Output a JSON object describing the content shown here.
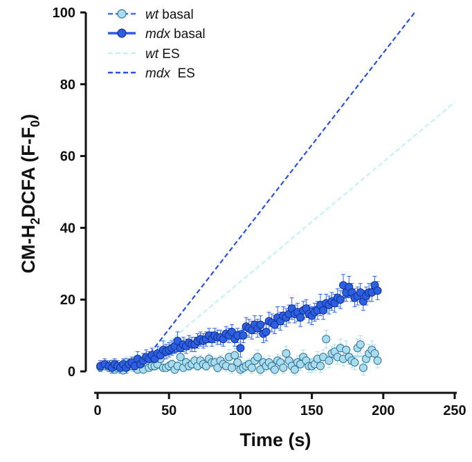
{
  "chart_data": {
    "type": "scatter",
    "xlabel": "Time (s)",
    "ylabel": {
      "prefix": "CM-H",
      "sub1": "2",
      "mid": "DCFA (F-F",
      "sub2": "0",
      "suffix": ")"
    },
    "xlim": [
      0,
      250
    ],
    "ylim": [
      0,
      100
    ],
    "x_ticks": [
      "0",
      "50",
      "100",
      "150",
      "200",
      "250"
    ],
    "y_ticks": [
      "0",
      "20",
      "40",
      "60",
      "80",
      "100"
    ],
    "legend_position": "top-left",
    "grid": false,
    "colors": {
      "wt": "#a9dcee",
      "wt_stroke": "#2f6f8f",
      "mdx": "#2d5fe3",
      "mdx_stroke": "#12308c",
      "wt_es": "#c4f0f7",
      "mdx_es": "#2a50d8"
    },
    "legend": [
      {
        "key": "wt_basal",
        "italic": "wt",
        "rest": " basal"
      },
      {
        "key": "mdx_basal",
        "italic": "mdx",
        "rest": " basal"
      },
      {
        "key": "wt_es",
        "italic": "wt",
        "rest": " ES"
      },
      {
        "key": "mdx_es",
        "italic": "mdx",
        "rest": "  ES"
      }
    ],
    "series": [
      {
        "key": "wt_basal",
        "x": [
          2,
          5,
          8,
          10,
          12,
          14,
          16,
          18,
          20,
          22,
          24,
          26,
          28,
          30,
          32,
          34,
          36,
          38,
          40,
          42,
          44,
          46,
          48,
          50,
          52,
          54,
          56,
          58,
          60,
          62,
          64,
          66,
          68,
          70,
          72,
          74,
          76,
          78,
          80,
          82,
          84,
          86,
          88,
          90,
          92,
          94,
          96,
          98,
          100,
          102,
          104,
          106,
          108,
          110,
          112,
          114,
          116,
          118,
          120,
          122,
          124,
          126,
          128,
          130,
          132,
          134,
          136,
          138,
          140,
          142,
          144,
          146,
          148,
          150,
          152,
          154,
          156,
          158,
          160,
          162,
          164,
          166,
          168,
          170,
          172,
          174,
          176,
          178,
          180,
          182,
          184,
          186,
          188,
          190,
          192,
          194,
          196
        ],
        "y": [
          1.2,
          1.5,
          1.0,
          2.0,
          0.5,
          1.0,
          1.0,
          0.3,
          2.5,
          2.0,
          1.5,
          2.0,
          0.5,
          3.0,
          0.5,
          2.5,
          1.0,
          1.5,
          1.5,
          2.0,
          3.5,
          1.0,
          1.0,
          1.5,
          2.0,
          0.5,
          1.5,
          4.0,
          1.0,
          2.5,
          1.5,
          2.0,
          3.0,
          1.5,
          3.0,
          2.0,
          1.5,
          3.5,
          2.5,
          2.5,
          1.0,
          3.0,
          2.0,
          1.5,
          4.0,
          1.0,
          4.5,
          2.5,
          0.5,
          1.0,
          1.5,
          2.0,
          1.0,
          3.0,
          4.0,
          0.5,
          2.5,
          1.5,
          2.5,
          1.5,
          0.5,
          3.0,
          2.5,
          1.0,
          5.0,
          3.0,
          1.5,
          0.5,
          2.5,
          2.0,
          4.0,
          3.0,
          1.5,
          1.5,
          2.0,
          3.5,
          1.5,
          4.0,
          9.0,
          3.0,
          5.0,
          5.5,
          4.0,
          6.5,
          3.5,
          6.0,
          4.0,
          3.0,
          2.5,
          6.5,
          7.5,
          1.0,
          3.5,
          5.0,
          6.0,
          5.0,
          3.0
        ],
        "error": [
          1.0,
          1.0,
          1.0,
          1.2,
          1.0,
          1.0,
          1.2,
          1.0,
          1.5,
          1.0,
          1.0,
          1.2,
          1.0,
          1.5,
          1.0,
          1.2,
          1.0,
          1.0,
          1.2,
          1.2,
          1.5,
          1.0,
          1.0,
          1.2,
          1.2,
          1.0,
          1.2,
          1.5,
          1.0,
          1.2,
          1.2,
          1.2,
          1.5,
          1.2,
          1.5,
          1.2,
          1.2,
          1.5,
          1.5,
          1.5,
          1.2,
          1.5,
          1.5,
          1.5,
          2.0,
          1.5,
          2.0,
          1.5,
          1.5,
          1.5,
          1.5,
          1.5,
          1.5,
          1.5,
          2.0,
          1.5,
          1.5,
          1.5,
          1.8,
          1.5,
          1.5,
          1.8,
          1.8,
          1.5,
          2.0,
          1.8,
          1.8,
          1.5,
          1.8,
          1.8,
          2.0,
          1.8,
          1.8,
          1.8,
          1.8,
          2.0,
          1.8,
          2.0,
          2.5,
          2.0,
          2.0,
          2.0,
          2.0,
          2.5,
          2.0,
          2.5,
          2.0,
          2.0,
          2.0,
          2.5,
          2.5,
          2.0,
          2.0,
          2.5,
          2.5,
          2.5,
          2.0
        ],
        "trend": [
          [
            20,
            0.3
          ],
          [
            196,
            4.5
          ]
        ]
      },
      {
        "key": "mdx_basal",
        "x": [
          2,
          5,
          8,
          10,
          12,
          14,
          16,
          18,
          20,
          22,
          24,
          26,
          28,
          30,
          32,
          34,
          36,
          38,
          40,
          42,
          44,
          46,
          48,
          50,
          52,
          54,
          56,
          58,
          60,
          62,
          64,
          66,
          68,
          70,
          72,
          74,
          76,
          78,
          80,
          82,
          84,
          86,
          88,
          90,
          92,
          94,
          96,
          98,
          100,
          102,
          104,
          106,
          108,
          110,
          112,
          114,
          116,
          118,
          120,
          122,
          124,
          126,
          128,
          130,
          132,
          134,
          136,
          138,
          140,
          142,
          144,
          146,
          148,
          150,
          152,
          154,
          156,
          158,
          160,
          162,
          164,
          166,
          168,
          170,
          172,
          174,
          176,
          178,
          180,
          182,
          184,
          186,
          188,
          190,
          192,
          194,
          196
        ],
        "y": [
          1.5,
          2.0,
          1.5,
          1.0,
          2.0,
          1.5,
          1.0,
          2.0,
          1.0,
          2.0,
          2.5,
          1.5,
          3.5,
          2.0,
          3.0,
          4.0,
          3.5,
          4.5,
          3.5,
          5.0,
          4.5,
          6.0,
          5.5,
          6.0,
          6.5,
          7.0,
          8.5,
          6.5,
          7.5,
          7.0,
          8.0,
          7.5,
          7.5,
          8.5,
          9.0,
          8.5,
          9.0,
          10.0,
          9.0,
          10.0,
          9.5,
          9.5,
          9.0,
          10.5,
          10.0,
          11.0,
          9.0,
          10.0,
          6.5,
          10.0,
          12.5,
          12.0,
          11.5,
          13.0,
          12.0,
          13.0,
          10.5,
          11.0,
          14.0,
          13.5,
          13.0,
          15.0,
          14.0,
          15.5,
          15.0,
          16.0,
          17.5,
          16.0,
          16.5,
          15.0,
          17.0,
          17.5,
          16.0,
          15.5,
          16.5,
          17.0,
          18.5,
          17.0,
          19.0,
          18.5,
          19.5,
          19.0,
          20.5,
          20.0,
          24.0,
          22.0,
          23.5,
          22.0,
          20.5,
          21.0,
          22.0,
          19.5,
          21.0,
          22.0,
          22.0,
          24.0,
          22.5
        ],
        "error": [
          1.5,
          1.5,
          1.5,
          1.5,
          1.5,
          1.5,
          1.5,
          1.5,
          1.5,
          1.5,
          1.5,
          1.5,
          2.0,
          1.5,
          2.0,
          2.0,
          2.0,
          2.0,
          2.0,
          2.0,
          2.0,
          2.5,
          2.0,
          2.0,
          2.0,
          2.0,
          2.5,
          2.0,
          2.0,
          2.0,
          2.0,
          2.0,
          2.0,
          2.0,
          2.0,
          2.0,
          2.0,
          2.0,
          2.0,
          2.0,
          2.0,
          2.0,
          2.0,
          2.0,
          2.0,
          2.0,
          2.0,
          2.0,
          2.5,
          2.0,
          2.5,
          2.5,
          2.5,
          2.5,
          2.5,
          2.5,
          2.5,
          2.5,
          2.5,
          2.5,
          2.5,
          3.0,
          2.5,
          2.5,
          2.5,
          2.5,
          3.0,
          2.5,
          2.5,
          2.5,
          2.5,
          2.5,
          2.5,
          2.5,
          2.5,
          2.5,
          3.0,
          2.5,
          2.5,
          2.5,
          2.5,
          2.5,
          2.5,
          2.5,
          3.0,
          2.5,
          3.0,
          2.5,
          2.5,
          2.5,
          2.5,
          2.5,
          2.5,
          2.5,
          2.5,
          2.5,
          2.5
        ],
        "trend": [
          [
            20,
            1.0
          ],
          [
            196,
            23.5
          ]
        ]
      },
      {
        "key": "wt_es",
        "x": [
          25,
          250
        ],
        "y": [
          0,
          75
        ]
      },
      {
        "key": "mdx_es",
        "x": [
          27,
          222
        ],
        "y": [
          0,
          100
        ]
      }
    ]
  }
}
